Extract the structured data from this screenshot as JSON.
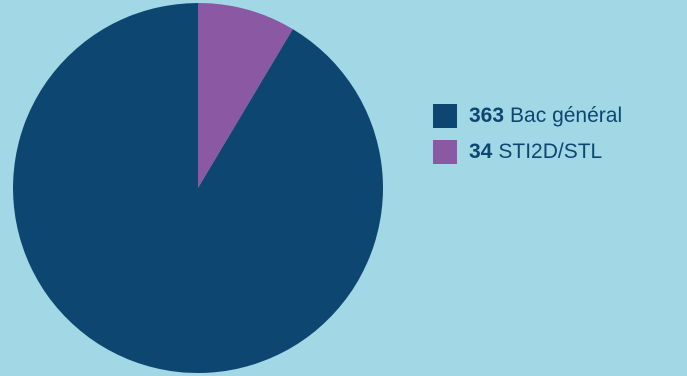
{
  "chart_data": {
    "type": "pie",
    "title": "",
    "slices": [
      {
        "label": "Bac général",
        "value": 363,
        "color": "#0d4670"
      },
      {
        "label": "STI2D/STL",
        "value": 34,
        "color": "#8b59a3"
      }
    ],
    "start_angle_deg": 0,
    "direction": "counterclockwise-from-top",
    "legend_position": "right"
  },
  "colors": {
    "background": "#a2d8e6",
    "text": "#0d4670"
  }
}
